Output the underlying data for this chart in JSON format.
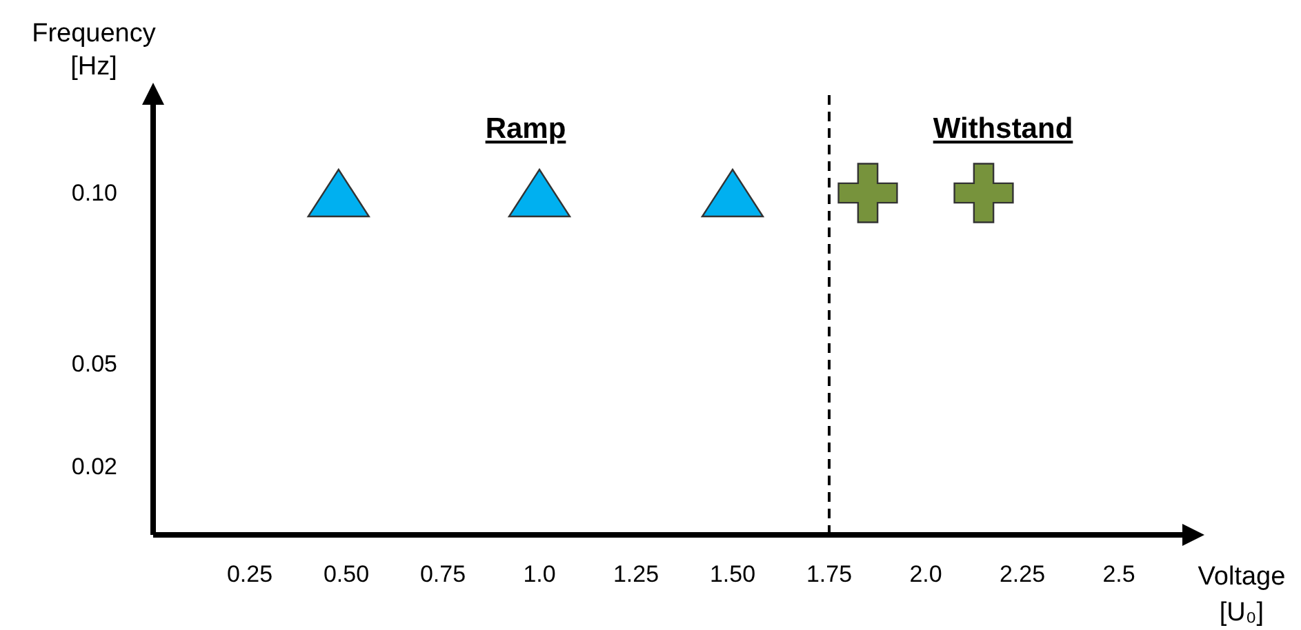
{
  "chart_data": {
    "type": "scatter",
    "xlabel": "Voltage [U₀]",
    "ylabel": "Frequency [Hz]",
    "xlim": [
      0,
      2.65
    ],
    "ylim": [
      0,
      0.125
    ],
    "xticks": [
      0.25,
      {
        "value": 0.5,
        "label": "0.50"
      },
      0.75,
      {
        "value": 1,
        "label": "1.0"
      },
      1.25,
      {
        "value": 1.5,
        "label": "1.50"
      },
      1.75,
      {
        "value": 2,
        "label": "2.0"
      },
      2.25,
      2.5
    ],
    "yticks": [
      0.02,
      0.05,
      {
        "value": 0.1,
        "label": "0.10"
      }
    ],
    "grid": false,
    "series": [
      {
        "color": "#00b0f0",
        "marker": "triangle",
        "x": [
          0.48,
          1.0,
          1.5
        ],
        "values": [
          0.1,
          0.1,
          0.1
        ]
      },
      {
        "color": "#77933c",
        "marker": "cross",
        "x": [
          1.85,
          2.15
        ],
        "values": [
          0.1,
          0.1
        ]
      }
    ],
    "ref_lines": [
      {
        "axis": "x",
        "value": 1.75,
        "line_style": "dashed",
        "color": "#000000"
      }
    ],
    "annotations": [
      "Ramp",
      "Withstand"
    ]
  }
}
